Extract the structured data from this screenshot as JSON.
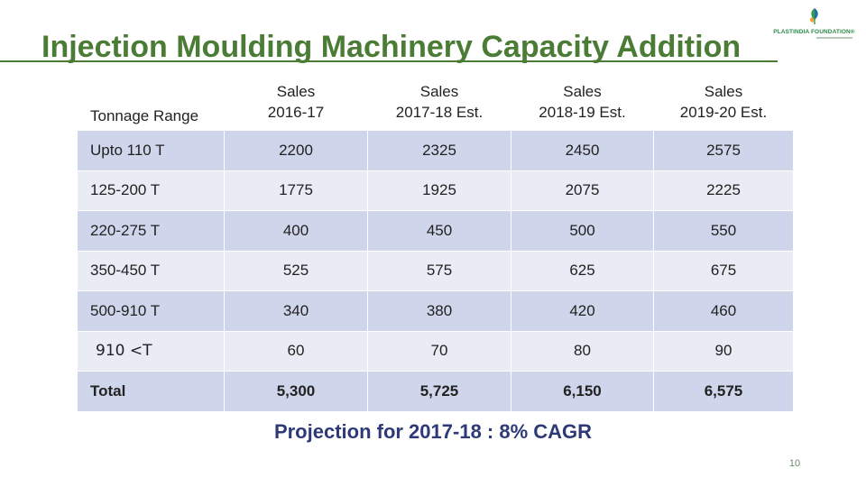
{
  "slide": {
    "title": "Injection Moulding Machinery Capacity Addition",
    "logo_text": "PLASTINDIA FOUNDATION®",
    "projection_note": "Projection for 2017-18 : 8% CAGR",
    "page_number": "10"
  },
  "table": {
    "headers": {
      "range": "Tonnage Range",
      "years": [
        {
          "line1": "Sales",
          "line2": "2016-17"
        },
        {
          "line1": "Sales",
          "line2": "2017-18 Est."
        },
        {
          "line1": "Sales",
          "line2": "2018-19 Est."
        },
        {
          "line1": "Sales",
          "line2": "2019-20 Est."
        }
      ]
    },
    "rows": [
      {
        "range": "Upto 110 T",
        "values": [
          "2200",
          "2325",
          "2450",
          "2575"
        ]
      },
      {
        "range": "125-200 T",
        "values": [
          "1775",
          "1925",
          "2075",
          "2225"
        ]
      },
      {
        "range": "220-275 T",
        "values": [
          "400",
          "450",
          "500",
          "550"
        ]
      },
      {
        "range": "350-450 T",
        "values": [
          "525",
          "575",
          "625",
          "675"
        ]
      },
      {
        "range": "500-910 T",
        "values": [
          "340",
          "380",
          "420",
          "460"
        ]
      },
      {
        "range": "910 <T",
        "values": [
          "60",
          "70",
          "80",
          "90"
        ]
      },
      {
        "range": "Total",
        "values": [
          "5,300",
          "5,725",
          "6,150",
          "6,575"
        ]
      }
    ]
  },
  "colors": {
    "title": "#4a7c36",
    "row_dark": "#cfd5ea",
    "row_light": "#e9ebf5",
    "projection": "#2e3a78"
  },
  "icons": {
    "logo": "plastindia-leaf-icon"
  }
}
